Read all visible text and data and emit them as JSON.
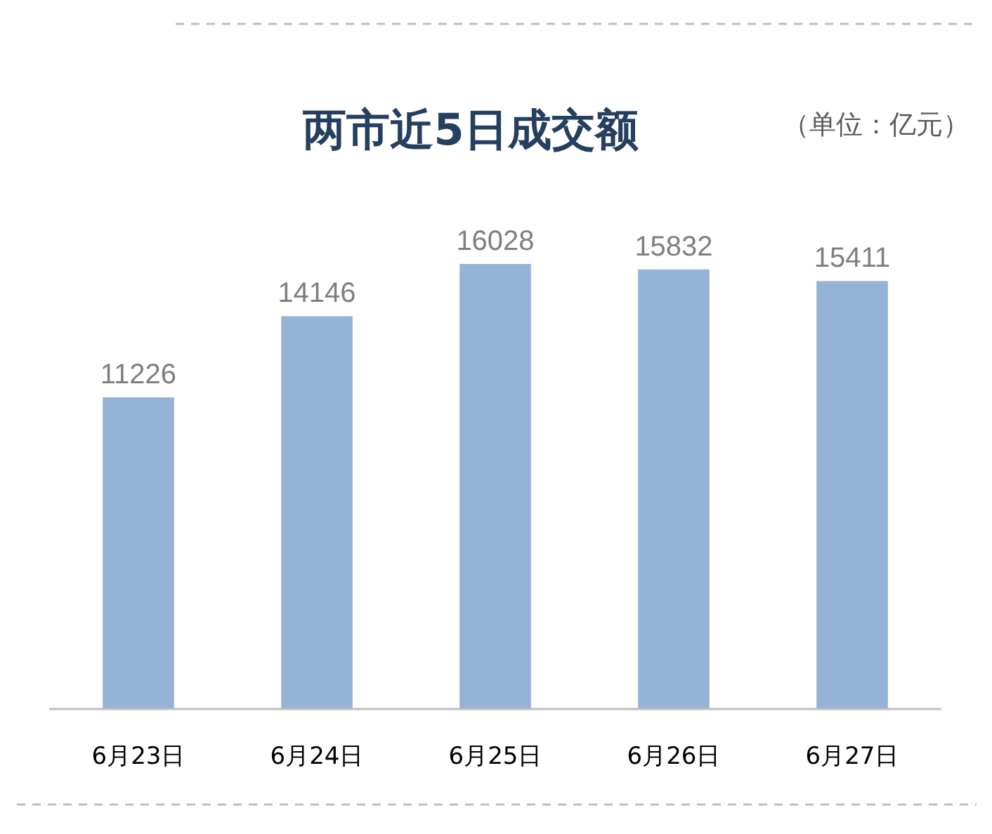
{
  "chart_data": {
    "type": "bar",
    "title": "两市近5日成交额",
    "subtitle": "（单位：亿元）",
    "categories": [
      "6月23日",
      "6月24日",
      "6月25日",
      "6月26日",
      "6月27日"
    ],
    "values": [
      11226,
      14146,
      16028,
      15832,
      15411
    ],
    "color": "#95b3d7",
    "data_labels": true
  }
}
